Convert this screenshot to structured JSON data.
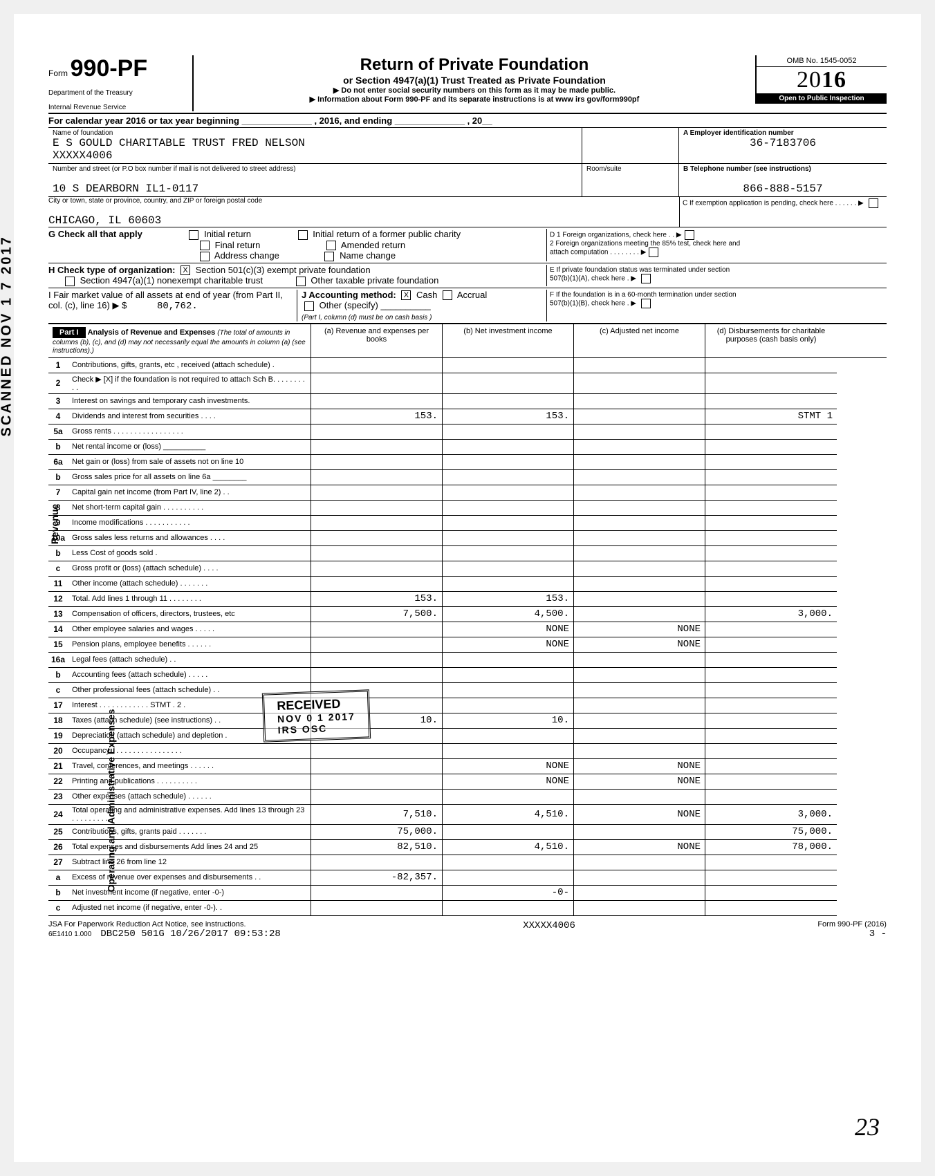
{
  "scanned_stamp": "SCANNED NOV 1 7 2017",
  "header": {
    "form_word": "Form",
    "form_number": "990-PF",
    "dept1": "Department of the Treasury",
    "dept2": "Internal Revenue Service",
    "title": "Return of Private Foundation",
    "subtitle": "or Section 4947(a)(1) Trust Treated as Private Foundation",
    "note1": "▶ Do not enter social security numbers on this form as it may be made public.",
    "note2": "▶ Information about Form 990-PF and its separate instructions is at www irs gov/form990pf",
    "omb": "OMB No. 1545-0052",
    "year": "2016",
    "open": "Open to Public Inspection"
  },
  "cal_year": "For calendar year 2016 or tax year beginning ______________ , 2016, and ending ______________ , 20__",
  "foundation": {
    "name_label": "Name of foundation",
    "name": "E S GOULD CHARITABLE TRUST FRED NELSON",
    "name2": "XXXXX4006",
    "street_label": "Number and street (or P.O box number if mail is not delivered to street address)",
    "street": "10 S DEARBORN IL1-0117",
    "city_label": "City or town, state or province, country, and ZIP or foreign postal code",
    "city": "CHICAGO, IL 60603",
    "room_label": "Room/suite"
  },
  "right": {
    "a_label": "A  Employer identification number",
    "a_val": "36-7183706",
    "b_label": "B  Telephone number (see instructions)",
    "b_val": "866-888-5157",
    "c_label": "C  If exemption application is pending, check here . . . . . . ▶",
    "d1": "D 1 Foreign organizations, check here . . ▶",
    "d2": "2 Foreign organizations meeting the 85% test, check here and attach computation . . . . . . . . ▶",
    "e": "E  If private foundation status was terminated under section 507(b)(1)(A), check here . ▶",
    "f": "F  If the foundation is in a 60-month termination under section 507(b)(1)(B), check here . ▶"
  },
  "g": {
    "label": "G Check all that apply",
    "opts": [
      "Initial return",
      "Final return",
      "Address change",
      "Initial return of a former public charity",
      "Amended return",
      "Name change"
    ]
  },
  "h": {
    "label": "H Check type of organization:",
    "opt1": "Section 501(c)(3) exempt private foundation",
    "opt1_checked": "X",
    "opt2": "Section 4947(a)(1) nonexempt charitable trust",
    "opt3": "Other taxable private foundation"
  },
  "i": {
    "label": "I  Fair market value of all assets at end of year (from Part II, col. (c), line 16) ▶ $",
    "val": "80,762.",
    "j_label": "J Accounting method:",
    "cash": "Cash",
    "cash_x": "X",
    "accrual": "Accrual",
    "other": "Other (specify) __________",
    "note": "(Part I, column (d) must be on cash basis )"
  },
  "part1": {
    "label": "Part I",
    "title": "Analysis of Revenue and Expenses",
    "note": "(The total of amounts in columns (b), (c), and (d) may not necessarily equal the amounts in column (a) (see instructions).)",
    "cols": [
      "(a) Revenue and expenses per books",
      "(b) Net investment income",
      "(c) Adjusted net income",
      "(d) Disbursements for charitable purposes (cash basis only)"
    ]
  },
  "rows": [
    {
      "n": "1",
      "d": "Contributions, gifts, grants, etc , received (attach schedule) .",
      "a": "",
      "b": "",
      "c": "",
      "e": ""
    },
    {
      "n": "2",
      "d": "Check ▶ [X] if the foundation is not required to attach Sch B. . . . . . . . . .",
      "a": "",
      "b": "",
      "c": "",
      "e": ""
    },
    {
      "n": "3",
      "d": "Interest on savings and temporary cash investments.",
      "a": "",
      "b": "",
      "c": "",
      "e": ""
    },
    {
      "n": "4",
      "d": "Dividends and interest from securities . . . .",
      "a": "153.",
      "b": "153.",
      "c": "",
      "e": "STMT 1"
    },
    {
      "n": "5a",
      "d": "Gross rents . . . . . . . . . . . . . . . . .",
      "a": "",
      "b": "",
      "c": "",
      "e": ""
    },
    {
      "n": "b",
      "d": "Net rental income or (loss) __________",
      "a": "",
      "b": "",
      "c": "",
      "e": ""
    },
    {
      "n": "6a",
      "d": "Net gain or (loss) from sale of assets not on line 10",
      "a": "",
      "b": "",
      "c": "",
      "e": ""
    },
    {
      "n": "b",
      "d": "Gross sales price for all assets on line 6a ________",
      "a": "",
      "b": "",
      "c": "",
      "e": ""
    },
    {
      "n": "7",
      "d": "Capital gain net income (from Part IV, line 2) . .",
      "a": "",
      "b": "",
      "c": "",
      "e": ""
    },
    {
      "n": "8",
      "d": "Net short-term capital gain . . . . . . . . . .",
      "a": "",
      "b": "",
      "c": "",
      "e": ""
    },
    {
      "n": "9",
      "d": "Income modifications . . . . . . . . . . .",
      "a": "",
      "b": "",
      "c": "",
      "e": ""
    },
    {
      "n": "10a",
      "d": "Gross sales less returns and allowances . . . .",
      "a": "",
      "b": "",
      "c": "",
      "e": ""
    },
    {
      "n": "b",
      "d": "Less Cost of goods sold .",
      "a": "",
      "b": "",
      "c": "",
      "e": ""
    },
    {
      "n": "c",
      "d": "Gross profit or (loss) (attach schedule) . . . .",
      "a": "",
      "b": "",
      "c": "",
      "e": ""
    },
    {
      "n": "11",
      "d": "Other income (attach schedule) . . . . . . .",
      "a": "",
      "b": "",
      "c": "",
      "e": ""
    },
    {
      "n": "12",
      "d": "Total. Add lines 1 through 11 . . . . . . . .",
      "a": "153.",
      "b": "153.",
      "c": "",
      "e": ""
    },
    {
      "n": "13",
      "d": "Compensation of officers, directors, trustees, etc",
      "a": "7,500.",
      "b": "4,500.",
      "c": "",
      "e": "3,000."
    },
    {
      "n": "14",
      "d": "Other employee salaries and wages . . . . .",
      "a": "",
      "b": "NONE",
      "c": "NONE",
      "e": ""
    },
    {
      "n": "15",
      "d": "Pension plans, employee benefits . . . . . .",
      "a": "",
      "b": "NONE",
      "c": "NONE",
      "e": ""
    },
    {
      "n": "16a",
      "d": "Legal fees (attach schedule) . .",
      "a": "",
      "b": "",
      "c": "",
      "e": ""
    },
    {
      "n": "b",
      "d": "Accounting fees (attach schedule) . . . . .",
      "a": "",
      "b": "",
      "c": "",
      "e": ""
    },
    {
      "n": "c",
      "d": "Other professional fees (attach schedule) . .",
      "a": "",
      "b": "",
      "c": "",
      "e": ""
    },
    {
      "n": "17",
      "d": "Interest . . . . . . . . . . . . STMT . 2 .",
      "a": "",
      "b": "",
      "c": "",
      "e": ""
    },
    {
      "n": "18",
      "d": "Taxes (attach schedule) (see instructions) . .",
      "a": "10.",
      "b": "10.",
      "c": "",
      "e": ""
    },
    {
      "n": "19",
      "d": "Depreciation (attach schedule) and depletion .",
      "a": "",
      "b": "",
      "c": "",
      "e": ""
    },
    {
      "n": "20",
      "d": "Occupancy . . . . . . . . . . . . . . . . .",
      "a": "",
      "b": "",
      "c": "",
      "e": ""
    },
    {
      "n": "21",
      "d": "Travel, conferences, and meetings . . . . . .",
      "a": "",
      "b": "NONE",
      "c": "NONE",
      "e": ""
    },
    {
      "n": "22",
      "d": "Printing and publications . . . . . . . . . .",
      "a": "",
      "b": "NONE",
      "c": "NONE",
      "e": ""
    },
    {
      "n": "23",
      "d": "Other expenses (attach schedule) . . . . . .",
      "a": "",
      "b": "",
      "c": "",
      "e": ""
    },
    {
      "n": "24",
      "d": "Total operating and administrative expenses. Add lines 13 through 23 . . . . . . . . .",
      "a": "7,510.",
      "b": "4,510.",
      "c": "NONE",
      "e": "3,000."
    },
    {
      "n": "25",
      "d": "Contributions, gifts, grants paid . . . . . . .",
      "a": "75,000.",
      "b": "",
      "c": "",
      "e": "75,000."
    },
    {
      "n": "26",
      "d": "Total expenses and disbursements Add lines 24 and 25",
      "a": "82,510.",
      "b": "4,510.",
      "c": "NONE",
      "e": "78,000."
    },
    {
      "n": "27",
      "d": "Subtract line 26 from line 12",
      "a": "",
      "b": "",
      "c": "",
      "e": ""
    },
    {
      "n": "a",
      "d": "Excess of revenue over expenses and disbursements . .",
      "a": "-82,357.",
      "b": "",
      "c": "",
      "e": ""
    },
    {
      "n": "b",
      "d": "Net investment income (if negative, enter -0-)",
      "a": "",
      "b": "-0-",
      "c": "",
      "e": ""
    },
    {
      "n": "c",
      "d": "Adjusted net income (if negative, enter -0-). .",
      "a": "",
      "b": "",
      "c": "",
      "e": ""
    }
  ],
  "stamp": {
    "l1": "RECEIVED",
    "l2": "NOV 0 1 2017",
    "l3": "IRS OSC"
  },
  "footer": {
    "left1": "JSA For Paperwork Reduction Act Notice, see instructions.",
    "left2": "6E1410 1.000",
    "left3": "DBC250 501G 10/26/2017 09:53:28",
    "mid": "XXXXX4006",
    "right1": "Form 990-PF (2016)",
    "right2": "3   -"
  },
  "initials": "23"
}
